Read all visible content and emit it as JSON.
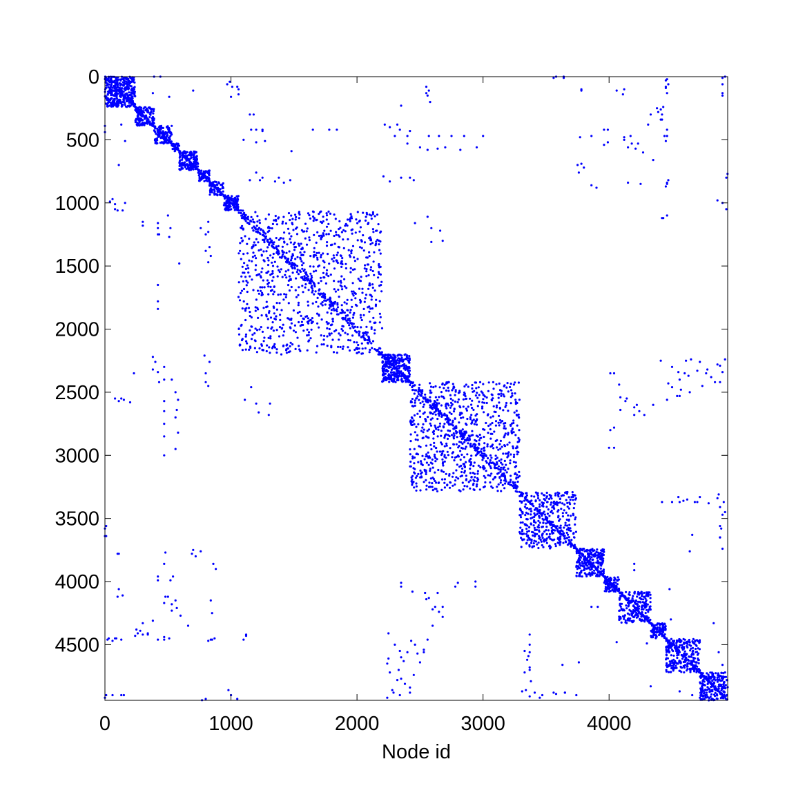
{
  "chart_data": {
    "type": "scatter",
    "title": "",
    "xlabel": "Node id",
    "ylabel": "",
    "xlim": [
      0,
      4941
    ],
    "ylim": [
      4941,
      0
    ],
    "y_axis_reversed": true,
    "grid": false,
    "legend": "none",
    "marker_color": "#0000ff",
    "x_ticks": [
      0,
      1000,
      2000,
      3000,
      4000
    ],
    "x_tick_labels": [
      "0",
      "1000",
      "2000",
      "3000",
      "4000"
    ],
    "y_ticks": [
      0,
      500,
      1000,
      1500,
      2000,
      2500,
      3000,
      3500,
      4000,
      4500
    ],
    "y_tick_labels": [
      "0",
      "500",
      "1000",
      "1500",
      "2000",
      "2500",
      "3000",
      "3500",
      "4000",
      "4500"
    ],
    "diagonal_blocks": [
      {
        "start": 0,
        "end": 240,
        "density": 0.5
      },
      {
        "start": 240,
        "end": 390,
        "density": 0.55
      },
      {
        "start": 390,
        "end": 530,
        "density": 0.5
      },
      {
        "start": 530,
        "end": 590,
        "density": 0.6
      },
      {
        "start": 590,
        "end": 740,
        "density": 0.55
      },
      {
        "start": 740,
        "end": 830,
        "density": 0.55
      },
      {
        "start": 830,
        "end": 940,
        "density": 0.5
      },
      {
        "start": 940,
        "end": 1060,
        "density": 0.6
      },
      {
        "start": 1060,
        "end": 2200,
        "density": 0.06
      },
      {
        "start": 2200,
        "end": 2420,
        "density": 0.5
      },
      {
        "start": 2420,
        "end": 3290,
        "density": 0.09
      },
      {
        "start": 3290,
        "end": 3740,
        "density": 0.15
      },
      {
        "start": 3740,
        "end": 3960,
        "density": 0.4
      },
      {
        "start": 3960,
        "end": 4080,
        "density": 0.5
      },
      {
        "start": 4080,
        "end": 4330,
        "density": 0.3
      },
      {
        "start": 4330,
        "end": 4450,
        "density": 0.55
      },
      {
        "start": 4450,
        "end": 4720,
        "density": 0.3
      },
      {
        "start": 4720,
        "end": 4941,
        "density": 0.35
      }
    ],
    "offdiagonal_points": [
      [
        390,
        0
      ],
      [
        440,
        0
      ],
      [
        3580,
        0
      ],
      [
        3640,
        0
      ],
      [
        4920,
        0
      ],
      [
        90,
        10
      ],
      [
        160,
        10
      ],
      [
        4460,
        20
      ],
      [
        4470,
        60
      ],
      [
        4450,
        90
      ],
      [
        1010,
        80
      ],
      [
        1050,
        80
      ],
      [
        970,
        60
      ],
      [
        4060,
        110
      ],
      [
        4900,
        60
      ],
      [
        4900,
        130
      ],
      [
        2550,
        80
      ],
      [
        2550,
        130
      ],
      [
        3780,
        110
      ],
      [
        130,
        380
      ],
      [
        700,
        110
      ],
      [
        1180,
        300
      ],
      [
        1160,
        420
      ],
      [
        1250,
        420
      ],
      [
        2220,
        380
      ],
      [
        2320,
        380
      ],
      [
        2340,
        420
      ],
      [
        4310,
        380
      ],
      [
        4330,
        300
      ],
      [
        4390,
        280
      ],
      [
        4410,
        260
      ],
      [
        4420,
        340
      ],
      [
        4460,
        420
      ],
      [
        4460,
        470
      ],
      [
        1840,
        420
      ],
      [
        1650,
        420
      ],
      [
        2400,
        470
      ],
      [
        2570,
        470
      ],
      [
        2650,
        470
      ],
      [
        2750,
        470
      ],
      [
        2850,
        470
      ],
      [
        3000,
        470
      ],
      [
        3860,
        470
      ],
      [
        3960,
        420
      ],
      [
        4120,
        480
      ],
      [
        4180,
        530
      ],
      [
        4230,
        530
      ],
      [
        3960,
        540
      ],
      [
        4170,
        470
      ],
      [
        160,
        510
      ],
      [
        1100,
        500
      ],
      [
        1270,
        510
      ],
      [
        1150,
        820
      ],
      [
        1230,
        820
      ],
      [
        1380,
        800
      ],
      [
        2350,
        800
      ],
      [
        2450,
        820
      ],
      [
        3750,
        700
      ],
      [
        3760,
        760
      ],
      [
        4460,
        840
      ],
      [
        4470,
        820
      ],
      [
        4930,
        800
      ],
      [
        4860,
        980
      ],
      [
        4250,
        850
      ],
      [
        40,
        990
      ],
      [
        100,
        1060
      ],
      [
        140,
        1060
      ],
      [
        160,
        1000
      ],
      [
        300,
        1150
      ],
      [
        420,
        1200
      ],
      [
        430,
        1250
      ],
      [
        520,
        1200
      ],
      [
        760,
        1200
      ],
      [
        800,
        1250
      ],
      [
        830,
        1350
      ],
      [
        840,
        1420
      ],
      [
        820,
        1470
      ],
      [
        420,
        1780
      ],
      [
        590,
        1480
      ],
      [
        2590,
        1200
      ],
      [
        2660,
        1220
      ],
      [
        2680,
        1300
      ],
      [
        4420,
        1120
      ],
      [
        4460,
        1100
      ],
      [
        4650,
        2240
      ],
      [
        4720,
        2260
      ],
      [
        4780,
        2320
      ],
      [
        4840,
        2420
      ],
      [
        4860,
        2280
      ],
      [
        4900,
        2340
      ],
      [
        4920,
        2240
      ],
      [
        4560,
        2400
      ],
      [
        4600,
        2350
      ],
      [
        4610,
        2250
      ],
      [
        4500,
        2300
      ],
      [
        4470,
        2430
      ],
      [
        4410,
        2250
      ],
      [
        4080,
        2440
      ],
      [
        4010,
        2350
      ],
      [
        4140,
        2550
      ],
      [
        4220,
        2600
      ],
      [
        4240,
        2650
      ],
      [
        4010,
        2800
      ],
      [
        4000,
        2940
      ],
      [
        4540,
        2530
      ],
      [
        4570,
        2480
      ],
      [
        4460,
        2560
      ],
      [
        230,
        2350
      ],
      [
        150,
        2560
      ],
      [
        110,
        2570
      ],
      [
        200,
        2580
      ],
      [
        400,
        2260
      ],
      [
        430,
        2420
      ],
      [
        470,
        2300
      ],
      [
        530,
        2400
      ],
      [
        560,
        2500
      ],
      [
        580,
        2560
      ],
      [
        570,
        2640
      ],
      [
        560,
        2700
      ],
      [
        580,
        2820
      ],
      [
        560,
        2950
      ],
      [
        800,
        2420
      ],
      [
        830,
        2260
      ],
      [
        790,
        2210
      ],
      [
        1110,
        2560
      ],
      [
        1160,
        2460
      ],
      [
        1310,
        2590
      ],
      [
        4560,
        3370
      ],
      [
        4590,
        3360
      ],
      [
        4680,
        3370
      ],
      [
        4720,
        3330
      ],
      [
        4870,
        3310
      ],
      [
        4910,
        3370
      ],
      [
        4920,
        3450
      ],
      [
        4890,
        3580
      ],
      [
        4880,
        3650
      ],
      [
        4640,
        3760
      ],
      [
        4420,
        3370
      ],
      [
        10,
        3560
      ],
      [
        10,
        3640
      ],
      [
        100,
        3780
      ],
      [
        480,
        3770
      ],
      [
        690,
        3780
      ],
      [
        720,
        3800
      ],
      [
        860,
        3860
      ],
      [
        880,
        3900
      ],
      [
        420,
        3990
      ],
      [
        520,
        3990
      ],
      [
        500,
        4120
      ],
      [
        560,
        4150
      ],
      [
        570,
        4210
      ],
      [
        600,
        4270
      ],
      [
        660,
        4350
      ],
      [
        100,
        4120
      ],
      [
        140,
        4110
      ],
      [
        840,
        4150
      ],
      [
        250,
        4380
      ],
      [
        240,
        4430
      ],
      [
        300,
        4420
      ],
      [
        340,
        4410
      ],
      [
        30,
        4450
      ],
      [
        80,
        4450
      ],
      [
        130,
        4460
      ],
      [
        470,
        4440
      ],
      [
        510,
        4450
      ],
      [
        850,
        4460
      ],
      [
        870,
        4450
      ],
      [
        1120,
        4430
      ],
      [
        3860,
        4200
      ],
      [
        3910,
        4200
      ],
      [
        4060,
        4480
      ],
      [
        4300,
        4490
      ],
      [
        2350,
        4040
      ],
      [
        2540,
        4090
      ],
      [
        2570,
        4130
      ],
      [
        2640,
        4090
      ],
      [
        2620,
        4200
      ],
      [
        2680,
        4200
      ],
      [
        2680,
        4280
      ],
      [
        2600,
        4350
      ],
      [
        2780,
        4040
      ],
      [
        2940,
        4040
      ],
      [
        2340,
        4550
      ],
      [
        2370,
        4630
      ],
      [
        2330,
        4700
      ],
      [
        2350,
        4770
      ],
      [
        2380,
        4810
      ],
      [
        2290,
        4880
      ],
      [
        2420,
        4880
      ],
      [
        2450,
        4740
      ],
      [
        2500,
        4640
      ],
      [
        2530,
        4560
      ],
      [
        2460,
        4500
      ],
      [
        3330,
        4550
      ],
      [
        3350,
        4620
      ],
      [
        3370,
        4700
      ],
      [
        3380,
        4790
      ],
      [
        3340,
        4860
      ],
      [
        3410,
        4880
      ],
      [
        3470,
        4900
      ],
      [
        3560,
        4880
      ],
      [
        3650,
        4880
      ],
      [
        3740,
        4900
      ],
      [
        3370,
        4500
      ],
      [
        3630,
        4660
      ],
      [
        4830,
        4330
      ],
      [
        4870,
        4560
      ],
      [
        4900,
        4660
      ],
      [
        4920,
        4720
      ],
      [
        4860,
        4760
      ],
      [
        10,
        4900
      ],
      [
        150,
        4900
      ],
      [
        770,
        4940
      ],
      [
        1000,
        4900
      ],
      [
        1050,
        4930
      ]
    ]
  }
}
